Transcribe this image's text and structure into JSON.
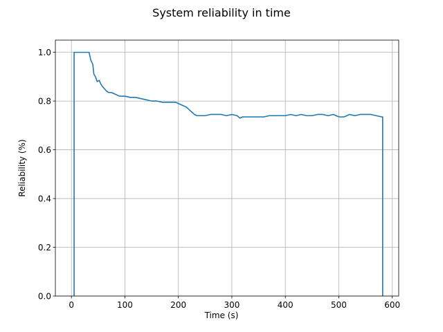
{
  "chart_data": {
    "type": "line",
    "title": "System reliability in time",
    "xlabel": "Time (s)",
    "ylabel": "Reliability (%)",
    "xlim": [
      -30,
      612
    ],
    "ylim": [
      0,
      1.05
    ],
    "x_ticks": [
      0,
      100,
      200,
      300,
      400,
      500,
      600
    ],
    "y_ticks": [
      0.0,
      0.2,
      0.4,
      0.6,
      0.8,
      1.0
    ],
    "x_tick_labels": [
      "0",
      "100",
      "200",
      "300",
      "400",
      "500",
      "600"
    ],
    "y_tick_labels": [
      "0.0",
      "0.2",
      "0.4",
      "0.6",
      "0.8",
      "1.0"
    ],
    "grid": true,
    "line_color": "#1f77b4",
    "series": [
      {
        "x": [
          5,
          5,
          6,
          10,
          20,
          30,
          33,
          36,
          40,
          42,
          45,
          48,
          52,
          55,
          58,
          62,
          66,
          70,
          75,
          80,
          90,
          100,
          110,
          120,
          130,
          140,
          150,
          160,
          170,
          180,
          190,
          195,
          200,
          205,
          210,
          215,
          220,
          225,
          230,
          235,
          240,
          250,
          260,
          270,
          280,
          290,
          300,
          310,
          315,
          320,
          330,
          340,
          350,
          360,
          370,
          380,
          390,
          400,
          410,
          420,
          430,
          440,
          450,
          460,
          470,
          480,
          490,
          500,
          510,
          520,
          530,
          540,
          550,
          560,
          570,
          580,
          582,
          582
        ],
        "y": [
          0.0,
          1.0,
          1.0,
          1.0,
          1.0,
          1.0,
          1.0,
          0.97,
          0.95,
          0.91,
          0.9,
          0.88,
          0.885,
          0.87,
          0.86,
          0.85,
          0.84,
          0.835,
          0.835,
          0.83,
          0.82,
          0.82,
          0.815,
          0.815,
          0.81,
          0.805,
          0.8,
          0.8,
          0.795,
          0.795,
          0.795,
          0.795,
          0.79,
          0.785,
          0.78,
          0.775,
          0.765,
          0.755,
          0.745,
          0.74,
          0.74,
          0.74,
          0.745,
          0.745,
          0.745,
          0.74,
          0.745,
          0.74,
          0.73,
          0.735,
          0.735,
          0.735,
          0.735,
          0.735,
          0.74,
          0.74,
          0.74,
          0.74,
          0.745,
          0.74,
          0.745,
          0.74,
          0.74,
          0.745,
          0.745,
          0.74,
          0.745,
          0.735,
          0.735,
          0.745,
          0.74,
          0.745,
          0.745,
          0.745,
          0.74,
          0.735,
          0.735,
          0.0
        ]
      }
    ]
  }
}
